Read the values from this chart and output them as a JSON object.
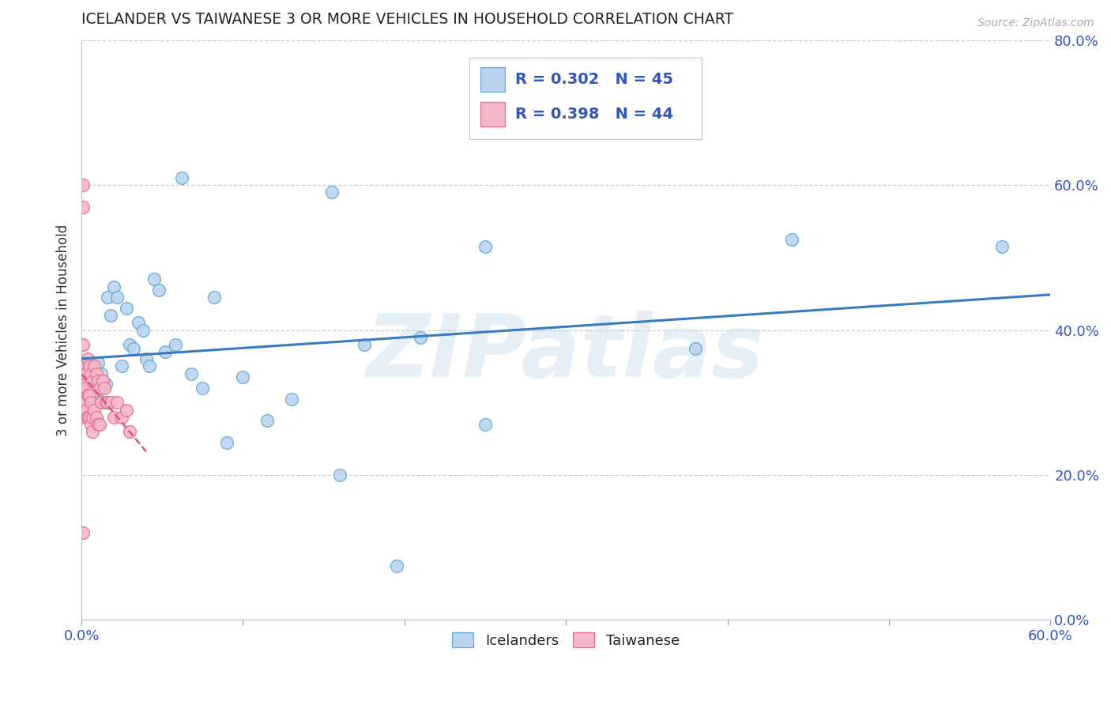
{
  "title": "ICELANDER VS TAIWANESE 3 OR MORE VEHICLES IN HOUSEHOLD CORRELATION CHART",
  "source": "Source: ZipAtlas.com",
  "ylabel": "3 or more Vehicles in Household",
  "watermark": "ZIPatlas",
  "xlim": [
    0.0,
    0.6
  ],
  "ylim": [
    0.0,
    0.8
  ],
  "ytick_positions": [
    0.0,
    0.2,
    0.4,
    0.6,
    0.8
  ],
  "ytick_labels": [
    "0.0%",
    "20.0%",
    "40.0%",
    "60.0%",
    "80.0%"
  ],
  "xtick_edge_labels": [
    "0.0%",
    "60.0%"
  ],
  "icelander_R": 0.302,
  "icelander_N": 45,
  "taiwanese_R": 0.398,
  "taiwanese_N": 44,
  "icelander_color": "#bad4f0",
  "taiwanese_color": "#f5b8cb",
  "icelander_edge_color": "#6aaad4",
  "taiwanese_edge_color": "#e87090",
  "icelander_line_color": "#3a7bbf",
  "taiwanese_line_color": "#e05580",
  "legend_text_color": "#3355bb",
  "icelander_x": [
    0.003,
    0.005,
    0.006,
    0.007,
    0.008,
    0.009,
    0.01,
    0.011,
    0.012,
    0.013,
    0.015,
    0.016,
    0.018,
    0.02,
    0.022,
    0.025,
    0.028,
    0.03,
    0.032,
    0.035,
    0.038,
    0.04,
    0.042,
    0.045,
    0.048,
    0.052,
    0.058,
    0.062,
    0.068,
    0.075,
    0.082,
    0.09,
    0.1,
    0.115,
    0.13,
    0.155,
    0.175,
    0.195,
    0.25,
    0.38,
    0.25,
    0.21,
    0.16,
    0.44,
    0.57
  ],
  "icelander_y": [
    0.355,
    0.33,
    0.295,
    0.34,
    0.345,
    0.31,
    0.355,
    0.3,
    0.34,
    0.33,
    0.325,
    0.445,
    0.42,
    0.46,
    0.445,
    0.35,
    0.43,
    0.38,
    0.375,
    0.41,
    0.4,
    0.36,
    0.35,
    0.47,
    0.455,
    0.37,
    0.38,
    0.61,
    0.34,
    0.32,
    0.445,
    0.245,
    0.335,
    0.275,
    0.305,
    0.59,
    0.38,
    0.075,
    0.27,
    0.375,
    0.515,
    0.39,
    0.2,
    0.525,
    0.515
  ],
  "taiwanese_x": [
    0.001,
    0.001,
    0.001,
    0.001,
    0.001,
    0.002,
    0.002,
    0.002,
    0.002,
    0.003,
    0.003,
    0.003,
    0.004,
    0.004,
    0.004,
    0.005,
    0.005,
    0.005,
    0.006,
    0.006,
    0.006,
    0.007,
    0.007,
    0.007,
    0.008,
    0.008,
    0.009,
    0.009,
    0.01,
    0.01,
    0.011,
    0.011,
    0.012,
    0.013,
    0.014,
    0.015,
    0.016,
    0.018,
    0.02,
    0.022,
    0.025,
    0.028,
    0.03,
    0.001
  ],
  "taiwanese_y": [
    0.6,
    0.57,
    0.38,
    0.34,
    0.32,
    0.35,
    0.33,
    0.3,
    0.28,
    0.34,
    0.32,
    0.29,
    0.36,
    0.31,
    0.28,
    0.35,
    0.31,
    0.28,
    0.34,
    0.3,
    0.27,
    0.33,
    0.28,
    0.26,
    0.35,
    0.29,
    0.34,
    0.28,
    0.33,
    0.27,
    0.32,
    0.27,
    0.3,
    0.33,
    0.32,
    0.3,
    0.3,
    0.3,
    0.28,
    0.3,
    0.28,
    0.29,
    0.26,
    0.12
  ]
}
